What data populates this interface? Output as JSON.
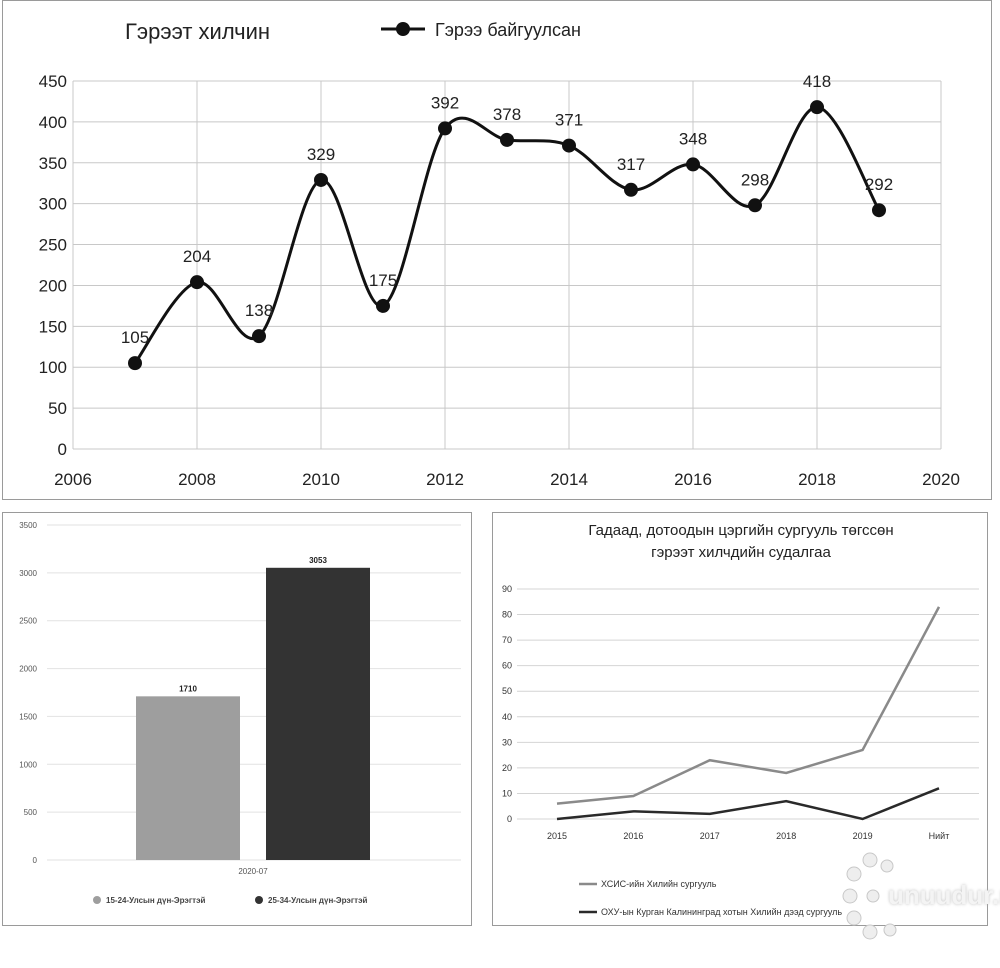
{
  "charts": [
    {
      "type": "line",
      "title": "Гэрээт хилчин",
      "legend": "Гэрээ байгуулсан",
      "legend_position": "top",
      "x": [
        2007,
        2008,
        2009,
        2010,
        2011,
        2012,
        2013,
        2014,
        2015,
        2016,
        2017,
        2018,
        2019
      ],
      "values": [
        105,
        204,
        138,
        329,
        175,
        392,
        378,
        371,
        317,
        348,
        298,
        418,
        292
      ],
      "data_labels": [
        "105",
        "204",
        "138",
        "329",
        "175",
        "392",
        "378",
        "371",
        "317",
        "348",
        "298",
        "418",
        "292"
      ],
      "x_ticks": [
        "2006",
        "2008",
        "2010",
        "2012",
        "2014",
        "2016",
        "2018",
        "2020"
      ],
      "y_ticks": [
        "0",
        "50",
        "100",
        "150",
        "200",
        "250",
        "300",
        "350",
        "400",
        "450"
      ],
      "xlim": [
        2006,
        2020
      ],
      "ylim": [
        0,
        450
      ],
      "grid": true,
      "smooth": true
    },
    {
      "type": "bar",
      "categories": [
        "2020-07"
      ],
      "series": [
        {
          "name": "15-24-Улсын дүн-Эрэгтэй",
          "value": 1710,
          "label": "1710",
          "color": "#9e9e9e"
        },
        {
          "name": "25-34-Улсын дүн-Эрэгтэй",
          "value": 3053,
          "label": "3053",
          "color": "#333333"
        }
      ],
      "y_ticks": [
        "0",
        "500",
        "1000",
        "1500",
        "2000",
        "2500",
        "3000",
        "3500"
      ],
      "ylim": [
        0,
        3500
      ],
      "legend_position": "bottom"
    },
    {
      "type": "line",
      "title_lines": [
        "Гадаад, дотоодын цэргийн сургууль төгссөн",
        "гэрээт хилчдийн судалгаа"
      ],
      "categories": [
        "2015",
        "2016",
        "2017",
        "2018",
        "2019",
        "Нийт"
      ],
      "series": [
        {
          "name": "ХСИС-ийн Хилийн сургууль",
          "values": [
            6,
            9,
            23,
            18,
            27,
            83
          ],
          "color": "#8a8a8a"
        },
        {
          "name": "ОХУ-ын Курган Калининград хотын Хилийн дээд сургууль",
          "values": [
            0,
            3,
            2,
            7,
            0,
            12
          ],
          "color": "#2a2a2a"
        }
      ],
      "y_ticks": [
        "0",
        "10",
        "20",
        "30",
        "40",
        "50",
        "60",
        "70",
        "80",
        "90"
      ],
      "ylim": [
        0,
        90
      ],
      "grid": true,
      "legend_position": "bottom"
    }
  ],
  "watermark": "unuudur.mn"
}
